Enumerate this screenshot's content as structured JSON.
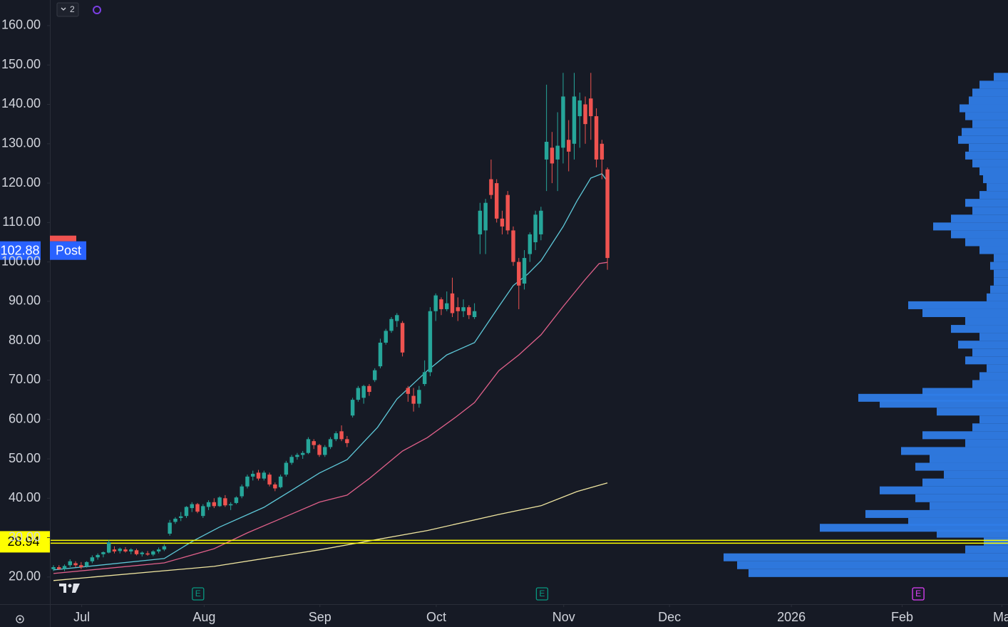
{
  "chart_data": {
    "type": "candlestick",
    "indicator_count": 2,
    "up_color": "#26a69a",
    "down_color": "#ef5350",
    "open": [
      22,
      22.5,
      22,
      23,
      23.5,
      23,
      22.8,
      24,
      25,
      25.8,
      26.2,
      27,
      26.6,
      27,
      26.5,
      26.8,
      25.8,
      26,
      25.7,
      26.5,
      27,
      31,
      34,
      35,
      35.5,
      37.5,
      38.5,
      35.5,
      37.8,
      39,
      38,
      40,
      38.2,
      38.8,
      40.5,
      43,
      45.5,
      46.5,
      45,
      46,
      43.5,
      42.8,
      46,
      49,
      50.5,
      51,
      51.5,
      54.5,
      53.5,
      51,
      53,
      55,
      57,
      55,
      61,
      65,
      65.5,
      68.5,
      70,
      73.5,
      79.5,
      82.5,
      85,
      84.5,
      68,
      66,
      64,
      69,
      72,
      87.5,
      90.5,
      88,
      92,
      88.5,
      87.5,
      88.5,
      86,
      107,
      108,
      121,
      120,
      111,
      117,
      108,
      100,
      94.5,
      102,
      105,
      107,
      126,
      129,
      126,
      129,
      131,
      130,
      137,
      140,
      141.5,
      137,
      130,
      123.5
    ],
    "high": [
      23,
      23,
      23.2,
      24.5,
      24,
      23.8,
      24,
      25.5,
      26,
      26.5,
      29.5,
      27.8,
      27.5,
      27.6,
      27.3,
      27.2,
      26.5,
      26.6,
      26.8,
      27.5,
      28.3,
      34.5,
      35.2,
      36.5,
      38,
      39,
      38.8,
      38.5,
      39.5,
      40,
      40.5,
      40.8,
      39,
      40.5,
      43.5,
      46,
      47,
      47.2,
      47,
      46.5,
      44,
      46,
      49.5,
      51,
      51.5,
      52,
      55.5,
      55,
      53.8,
      53.5,
      55.5,
      57,
      58.5,
      55.8,
      65.5,
      68.5,
      68.8,
      69,
      73,
      80.5,
      83,
      86,
      87,
      85,
      68.5,
      68,
      68.5,
      75,
      88.5,
      92,
      91,
      92.5,
      96,
      91,
      90.5,
      89,
      89.5,
      115,
      116,
      126,
      121,
      113,
      118,
      109,
      101,
      103,
      107.5,
      113,
      114,
      145,
      133,
      138,
      148,
      136,
      148,
      143,
      142,
      148,
      139,
      131,
      124
    ],
    "low": [
      21.5,
      21.8,
      21.5,
      22.5,
      22.5,
      22,
      22.4,
      23.5,
      24.4,
      25,
      26,
      26,
      26,
      26.2,
      25.8,
      25.5,
      25.2,
      25.4,
      25.3,
      26,
      26.6,
      30.5,
      33.5,
      34.2,
      35,
      36.5,
      36.2,
      35,
      37,
      37.5,
      37.8,
      37.8,
      37,
      38.5,
      40,
      42.5,
      44.5,
      44.5,
      44.5,
      43,
      41.8,
      42.5,
      45.5,
      48.5,
      49.8,
      50,
      51.2,
      52.5,
      50.5,
      50.5,
      52.5,
      54.5,
      54.5,
      53,
      60.5,
      64.5,
      64,
      66,
      69.5,
      73,
      79,
      82,
      83.5,
      76,
      64.5,
      62,
      63,
      68.5,
      71,
      85,
      86.5,
      87.5,
      86,
      85,
      86,
      85.5,
      85.5,
      102,
      102,
      116,
      110,
      107,
      107,
      99,
      88,
      93,
      100,
      103,
      105.5,
      118,
      120,
      118,
      125,
      123,
      126,
      129,
      130,
      131,
      124,
      121,
      98
    ],
    "close": [
      22.5,
      22,
      22.8,
      24,
      23,
      22.5,
      23.8,
      25,
      25.6,
      26.3,
      28.8,
      26.5,
      27.2,
      26.5,
      27,
      25.8,
      26.2,
      25.7,
      26.5,
      27,
      27.8,
      33.8,
      34.8,
      35.4,
      37.8,
      38.5,
      36.6,
      38,
      39,
      38,
      40.2,
      38.2,
      38.5,
      40.2,
      43,
      45.5,
      46.2,
      45,
      46.5,
      43.5,
      42.5,
      45.5,
      49,
      50.5,
      51,
      51.5,
      55,
      53.5,
      51,
      53,
      55,
      56.5,
      55,
      54,
      65,
      68,
      68.5,
      67,
      72.5,
      79.5,
      82.5,
      85.5,
      86.5,
      77,
      66.5,
      64,
      67.5,
      72,
      87.5,
      91.5,
      88,
      89.5,
      87,
      87.5,
      88.5,
      86.5,
      87.5,
      113,
      115,
      117,
      111,
      109,
      108,
      100,
      94,
      101,
      107,
      112,
      113,
      130.5,
      125,
      129.5,
      142,
      128,
      142,
      141,
      135,
      137,
      126,
      126,
      101
    ],
    "xlim": [
      -0.64,
      172.3
    ],
    "xticks": [
      {
        "value": 5.1,
        "label": "Jul"
      },
      {
        "value": 27.2,
        "label": "Aug"
      },
      {
        "value": 48.1,
        "label": "Sep"
      },
      {
        "value": 69.1,
        "label": "Oct"
      },
      {
        "value": 92.1,
        "label": "Nov"
      },
      {
        "value": 111.2,
        "label": "Dec"
      },
      {
        "value": 133.2,
        "label": "2026"
      },
      {
        "value": 153.2,
        "label": "Feb"
      },
      {
        "value": 171.2,
        "label": "Ma"
      }
    ],
    "ylim": [
      13.1,
      166.5
    ],
    "yticks": [
      {
        "value": 20,
        "label": "20.00"
      },
      {
        "value": 30,
        "label": "30.00"
      },
      {
        "value": 40,
        "label": "40.00"
      },
      {
        "value": 50,
        "label": "50.00"
      },
      {
        "value": 60,
        "label": "60.00"
      },
      {
        "value": 70,
        "label": "70.00"
      },
      {
        "value": 80,
        "label": "80.00"
      },
      {
        "value": 90,
        "label": "90.00"
      },
      {
        "value": 100,
        "label": "100.00"
      },
      {
        "value": 110,
        "label": "110.00"
      },
      {
        "value": 120,
        "label": "120.00"
      },
      {
        "value": 130,
        "label": "130.00"
      },
      {
        "value": 140,
        "label": "140.00"
      },
      {
        "value": 150,
        "label": "150.00"
      },
      {
        "value": 160,
        "label": "160.00"
      }
    ],
    "lines": [
      {
        "color": "#5ec8d8",
        "x": [
          0,
          20,
          25,
          30,
          38,
          43,
          48,
          53,
          58.5,
          62,
          67.5,
          71,
          76,
          80.4,
          83,
          85.6,
          88,
          92,
          94.5,
          97,
          99,
          100
        ],
        "values": [
          21.8,
          24.7,
          29,
          32.7,
          37.7,
          42,
          46.4,
          49.8,
          58,
          65.2,
          72.4,
          76.4,
          79.5,
          88.7,
          94,
          96.9,
          100.3,
          109,
          115.5,
          121.3,
          122.4,
          120.4
        ]
      },
      {
        "color": "#e0608a",
        "x": [
          0,
          20,
          29,
          35,
          42,
          48,
          53,
          57,
          63,
          67.5,
          72.7,
          76,
          80.4,
          84,
          88,
          92,
          95.9,
          98.5,
          100
        ],
        "values": [
          20.9,
          23.6,
          27.2,
          31.2,
          35.4,
          39,
          40.8,
          45,
          52,
          55.4,
          60.7,
          64.3,
          72.4,
          76.4,
          81.5,
          88.7,
          95.4,
          99.6,
          99.9
        ]
      },
      {
        "color": "#f0e6a0",
        "x": [
          0,
          29,
          48,
          67.5,
          80.4,
          88,
          94.5,
          100
        ],
        "values": [
          19.1,
          22.7,
          26.9,
          31.8,
          35.9,
          38.1,
          41.7,
          43.9
        ]
      }
    ],
    "price_line": {
      "value": 28.94,
      "color": "#ffff00"
    },
    "last_price": {
      "value": 102.88,
      "tag": "Post",
      "color": "#2962ff"
    },
    "events": [
      {
        "x": 26.1,
        "label": "E",
        "color": "#089981"
      },
      {
        "x": 88.2,
        "label": "E",
        "color": "#089981"
      },
      {
        "x": 156.1,
        "label": "E",
        "color": "#e040fb"
      }
    ],
    "volume_profile": {
      "color": "#2f7ce6",
      "levels": [
        21,
        23,
        25,
        27,
        29,
        31,
        32.5,
        34,
        36,
        38,
        40,
        42,
        44,
        46,
        48,
        50,
        52,
        54,
        56,
        58,
        60,
        62,
        64,
        65.5,
        67,
        69,
        71,
        73,
        75,
        77,
        79,
        81,
        83,
        85,
        87,
        89,
        91,
        93,
        95,
        97,
        99,
        101,
        103,
        105,
        107,
        109,
        111,
        113,
        115,
        117,
        119,
        121,
        123,
        125,
        127,
        129,
        131,
        133,
        135,
        137,
        139,
        141,
        143,
        145,
        147
      ],
      "values": [
        364,
        380,
        399,
        60,
        34,
        100,
        264,
        140,
        200,
        110,
        130,
        180,
        120,
        90,
        130,
        110,
        150,
        60,
        120,
        50,
        40,
        100,
        180,
        210,
        120,
        50,
        40,
        30,
        60,
        50,
        70,
        40,
        80,
        60,
        120,
        140,
        30,
        25,
        20,
        20,
        25,
        20,
        40,
        60,
        80,
        105,
        80,
        50,
        60,
        40,
        30,
        35,
        40,
        50,
        60,
        55,
        70,
        65,
        50,
        60,
        68,
        55,
        50,
        40,
        20
      ]
    }
  }
}
